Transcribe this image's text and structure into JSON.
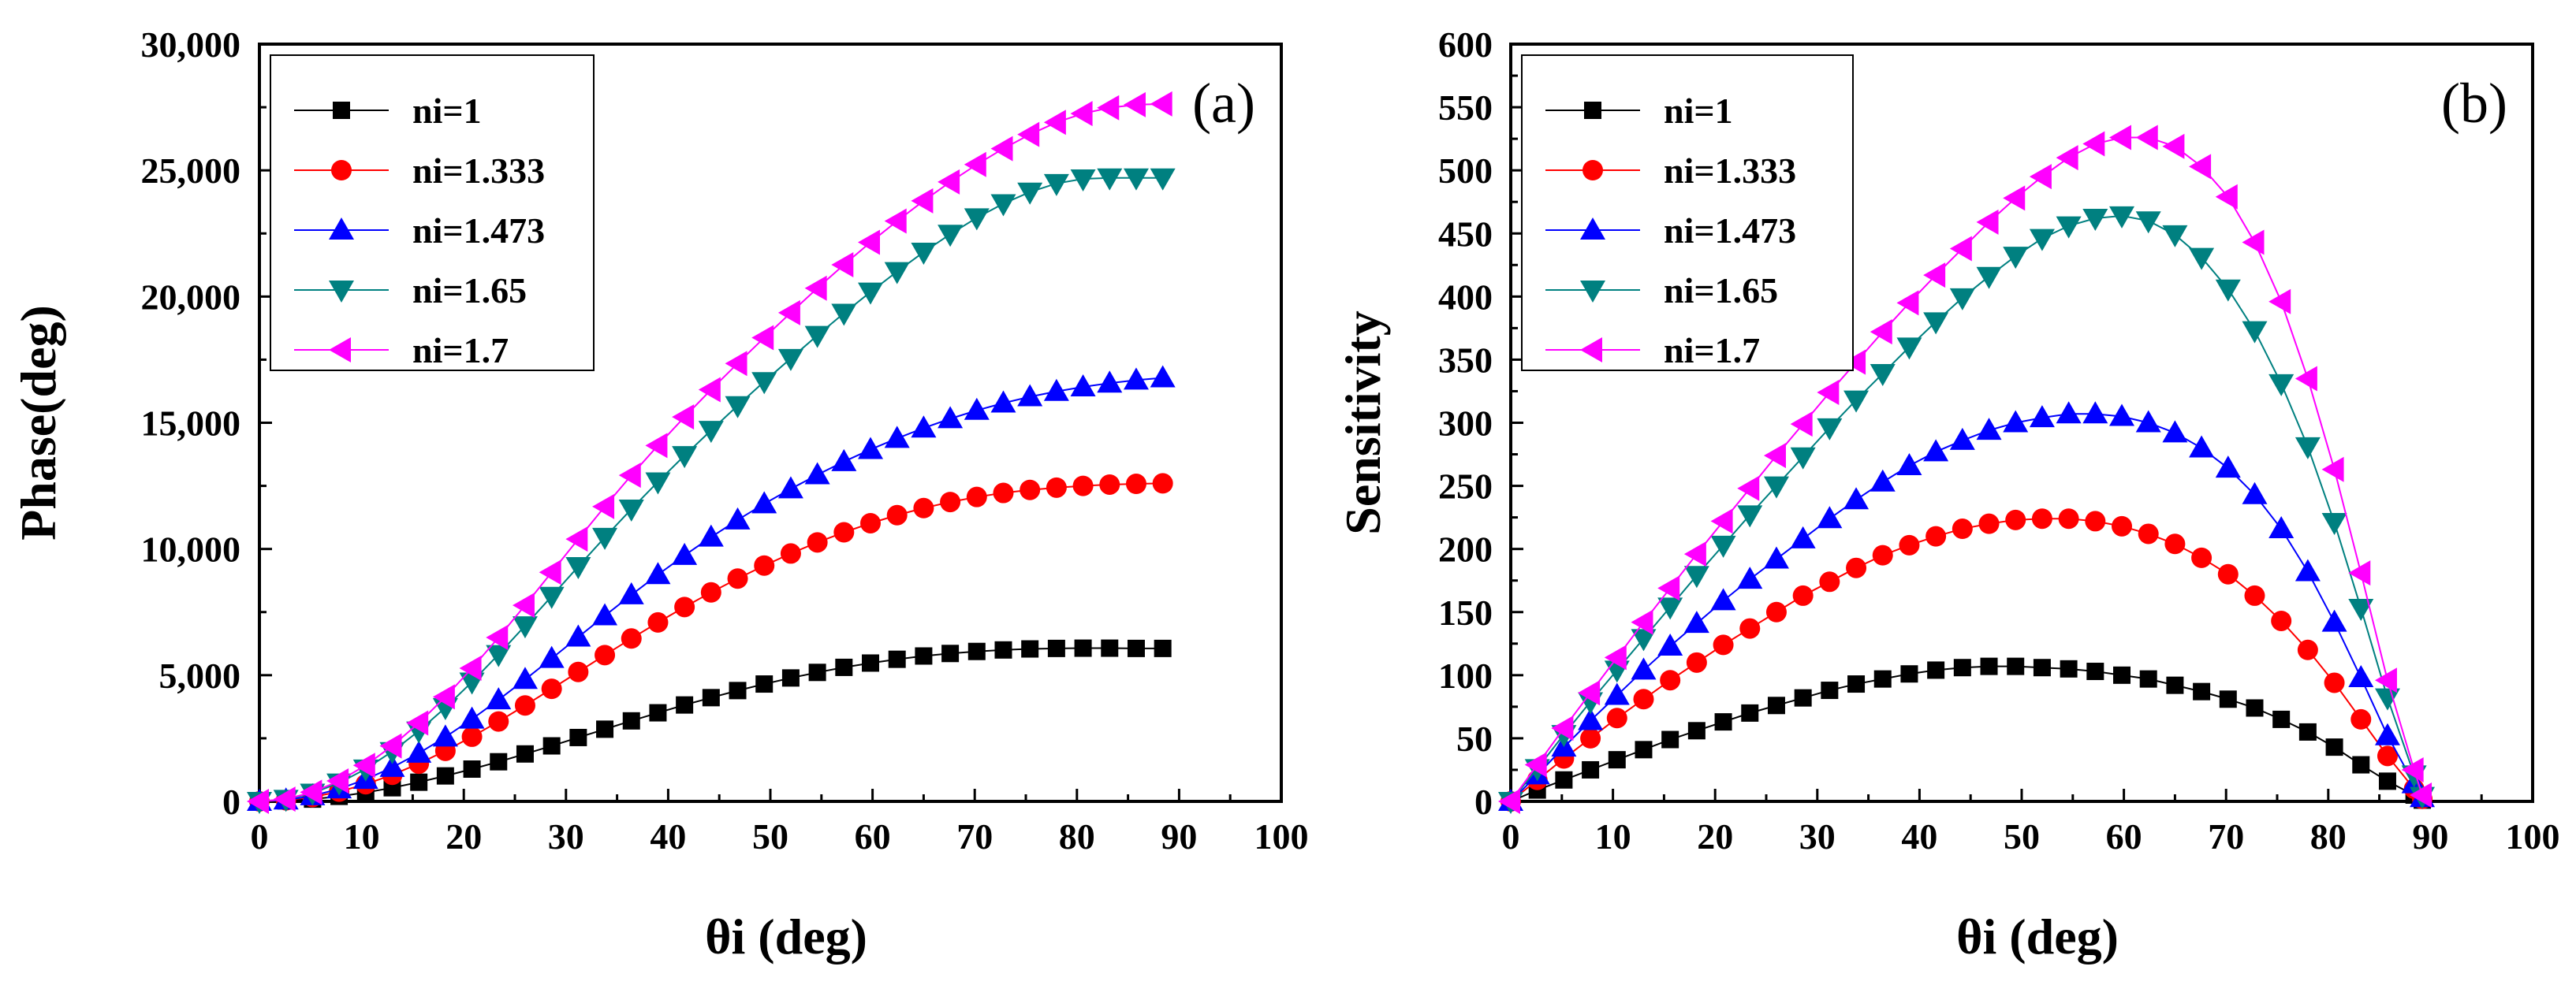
{
  "figure": {
    "legend_labels": [
      "ni=1",
      "ni=1.333",
      "ni=1.473",
      "ni=1.65",
      "ni=1.7"
    ],
    "colors": {
      "ni=1": "#000000",
      "ni=1.333": "#ff0000",
      "ni=1.473": "#0000ff",
      "ni=1.65": "#008080",
      "ni=1.7": "#ff00ff"
    },
    "markers": {
      "ni=1": "square",
      "ni=1.333": "circle",
      "ni=1.473": "triangle-up",
      "ni=1.65": "triangle-down",
      "ni=1.7": "triangle-left"
    }
  },
  "chart_data": [
    {
      "type": "line",
      "panel_label": "(a)",
      "title": "",
      "xlabel": "θi (deg)",
      "ylabel": "Phase(deg)",
      "xlim": [
        0,
        100
      ],
      "ylim": [
        0,
        30000
      ],
      "xticks": [
        0,
        10,
        20,
        30,
        40,
        50,
        60,
        70,
        80,
        90,
        100
      ],
      "yticks": [
        0,
        5000,
        10000,
        15000,
        20000,
        25000,
        30000
      ],
      "xtick_labels": [
        "0",
        "10",
        "20",
        "30",
        "40",
        "50",
        "60",
        "70",
        "80",
        "90",
        "100"
      ],
      "ytick_labels": [
        "0",
        "5,000",
        "10,000",
        "15,000",
        "20,000",
        "25,000",
        "30,000"
      ],
      "legend_position": "top-left",
      "x": [
        0,
        2.6,
        5.2,
        7.8,
        10.4,
        13,
        15.6,
        18.2,
        20.8,
        23.4,
        26,
        28.6,
        31.2,
        33.8,
        36.4,
        39,
        41.6,
        44.2,
        46.8,
        49.4,
        52,
        54.6,
        57.2,
        59.8,
        62.4,
        65,
        67.6,
        70.2,
        72.8,
        75.4,
        78,
        80.6,
        83.2,
        85.8,
        88.4
      ],
      "series": [
        {
          "name": "ni=1",
          "values": [
            0,
            22,
            90,
            200,
            350,
            540,
            760,
            1010,
            1280,
            1570,
            1880,
            2200,
            2530,
            2860,
            3190,
            3510,
            3820,
            4110,
            4390,
            4650,
            4890,
            5110,
            5310,
            5480,
            5630,
            5760,
            5860,
            5940,
            6000,
            6040,
            6060,
            6070,
            6070,
            6060,
            6060
          ]
        },
        {
          "name": "ni=1.333",
          "values": [
            0,
            43,
            172,
            385,
            680,
            1052,
            1496,
            2002,
            2562,
            3166,
            3802,
            4460,
            5128,
            5796,
            6453,
            7090,
            7700,
            8280,
            8828,
            9342,
            9820,
            10260,
            10660,
            11020,
            11340,
            11620,
            11860,
            12060,
            12220,
            12340,
            12430,
            12500,
            12550,
            12580,
            12600
          ]
        },
        {
          "name": "ni=1.473",
          "values": [
            0,
            55,
            221,
            495,
            872,
            1346,
            1909,
            2550,
            3259,
            4023,
            4830,
            5662,
            6508,
            7353,
            8182,
            8983,
            9745,
            10470,
            11150,
            11790,
            12380,
            12940,
            13460,
            13940,
            14380,
            14790,
            15160,
            15490,
            15780,
            16030,
            16240,
            16420,
            16570,
            16690,
            16780
          ]
        },
        {
          "name": "ni=1.65",
          "values": [
            0,
            82,
            327,
            731,
            1284,
            1975,
            2790,
            3715,
            4731,
            5819,
            6958,
            8126,
            9301,
            10460,
            11580,
            12660,
            13700,
            14700,
            15680,
            16630,
            17550,
            18460,
            19340,
            20180,
            20990,
            21760,
            22470,
            23120,
            23680,
            24140,
            24480,
            24660,
            24700,
            24700,
            24700
          ]
        },
        {
          "name": "ni=1.7",
          "values": [
            0,
            91,
            363,
            812,
            1428,
            2198,
            3107,
            4140,
            5276,
            6493,
            7768,
            9075,
            10390,
            11680,
            12920,
            14100,
            15230,
            16310,
            17350,
            18370,
            19360,
            20330,
            21260,
            22150,
            22990,
            23790,
            24540,
            25230,
            25860,
            26420,
            26900,
            27250,
            27480,
            27600,
            27630
          ]
        }
      ]
    },
    {
      "type": "line",
      "panel_label": "(b)",
      "title": "",
      "xlabel": "θi (deg)",
      "ylabel": "Sensitivity",
      "xlim": [
        0,
        100
      ],
      "ylim": [
        0,
        600
      ],
      "xticks": [
        0,
        10,
        20,
        30,
        40,
        50,
        60,
        70,
        80,
        90,
        100
      ],
      "yticks": [
        0,
        50,
        100,
        150,
        200,
        250,
        300,
        350,
        400,
        450,
        500,
        550,
        600
      ],
      "xtick_labels": [
        "0",
        "10",
        "20",
        "30",
        "40",
        "50",
        "60",
        "70",
        "80",
        "90",
        "100"
      ],
      "ytick_labels": [
        "0",
        "50",
        "100",
        "150",
        "200",
        "250",
        "300",
        "350",
        "400",
        "450",
        "500",
        "550",
        "600"
      ],
      "legend_position": "top-left",
      "x": [
        0,
        2.6,
        5.2,
        7.8,
        10.4,
        13,
        15.6,
        18.2,
        20.8,
        23.4,
        26,
        28.6,
        31.2,
        33.8,
        36.4,
        39,
        41.6,
        44.2,
        46.8,
        49.4,
        52,
        54.6,
        57.2,
        59.8,
        62.4,
        65,
        67.6,
        70.2,
        72.8,
        75.4,
        78,
        80.6,
        83.2,
        85.8,
        88.4,
        89.2
      ],
      "series": [
        {
          "name": "ni=1",
          "values": [
            0,
            9,
            17,
            25,
            33,
            41,
            49,
            56,
            63,
            70,
            76,
            82,
            88,
            93,
            97,
            101,
            104,
            106,
            107,
            107,
            106,
            105,
            103,
            100,
            97,
            92,
            87,
            81,
            74,
            65,
            55,
            43,
            29,
            16,
            5,
            1
          ]
        },
        {
          "name": "ni=1.333",
          "values": [
            0,
            17,
            34,
            50,
            66,
            81,
            96,
            110,
            124,
            137,
            150,
            163,
            174,
            185,
            195,
            203,
            210,
            216,
            220,
            223,
            224,
            224,
            222,
            218,
            212,
            204,
            193,
            180,
            163,
            143,
            120,
            94,
            65,
            36,
            10,
            2
          ]
        },
        {
          "name": "ni=1.473",
          "values": [
            0,
            21,
            43,
            64,
            84,
            104,
            123,
            141,
            159,
            176,
            192,
            208,
            224,
            239,
            253,
            266,
            277,
            286,
            294,
            300,
            304,
            307,
            307,
            305,
            300,
            292,
            280,
            264,
            243,
            216,
            182,
            142,
            98,
            52,
            14,
            3
          ]
        },
        {
          "name": "ni=1.65",
          "values": [
            0,
            26,
            53,
            79,
            104,
            129,
            154,
            179,
            203,
            227,
            250,
            273,
            296,
            318,
            339,
            360,
            380,
            399,
            416,
            432,
            446,
            456,
            462,
            464,
            460,
            449,
            431,
            406,
            373,
            331,
            281,
            221,
            153,
            82,
            21,
            4
          ]
        },
        {
          "name": "ni=1.7",
          "values": [
            0,
            29,
            58,
            86,
            114,
            142,
            169,
            196,
            222,
            248,
            274,
            299,
            324,
            348,
            372,
            395,
            417,
            438,
            459,
            478,
            495,
            510,
            521,
            526,
            526,
            519,
            503,
            479,
            443,
            396,
            335,
            263,
            181,
            96,
            25,
            5
          ]
        }
      ]
    }
  ]
}
